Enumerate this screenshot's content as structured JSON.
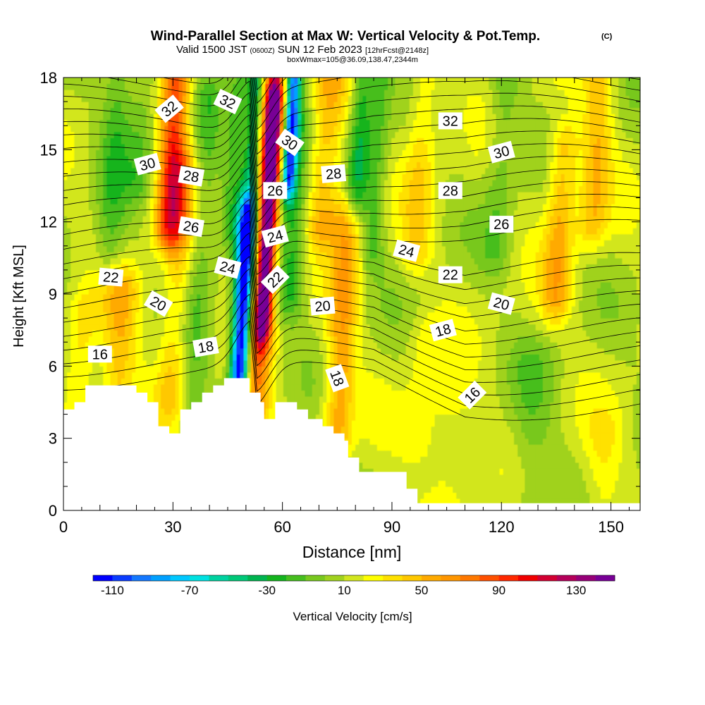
{
  "title": "Wind-Parallel Section at Max W: Vertical Velocity & Pot.Temp.",
  "title_units": "(C)",
  "subtitle": {
    "valid": "Valid 1500 JST",
    "utc": "(0600Z)",
    "date": "SUN 12 Feb 2023",
    "fcst": "[12hrFcst@2148z]"
  },
  "box_note": "boxWmax=105@36.09,138.47,2344m",
  "chart_data": {
    "type": "heatmap",
    "xlabel": "Distance [nm]",
    "ylabel": "Height [Kft MSL]",
    "xlim": [
      0,
      158
    ],
    "ylim": [
      0,
      18
    ],
    "x_ticks": [
      0,
      30,
      60,
      90,
      120,
      150
    ],
    "y_ticks": [
      0,
      3,
      6,
      9,
      12,
      15,
      18
    ],
    "fill_variable": "Vertical Velocity [cm/s]",
    "colorbar": {
      "label": "Vertical Velocity [cm/s]",
      "min": -120,
      "max": 150,
      "step": 10,
      "tick_labels": [
        "-110",
        "-70",
        "-30",
        "10",
        "50",
        "90",
        "130"
      ],
      "colors": [
        "#0000ff",
        "#0a3cff",
        "#1478ff",
        "#00a0ff",
        "#00c8ff",
        "#00e1e1",
        "#00d2a0",
        "#00c878",
        "#00b450",
        "#14b41e",
        "#46be1e",
        "#78c81e",
        "#a0d21e",
        "#d2e61e",
        "#ffff00",
        "#ffe100",
        "#ffc800",
        "#ffaa00",
        "#ff9600",
        "#ff7800",
        "#ff5000",
        "#ff2800",
        "#f00000",
        "#d20032",
        "#b4005a",
        "#960078",
        "#780096"
      ]
    },
    "w_features": [
      {
        "x": 28,
        "ztop": 18,
        "zbot": 12,
        "w": 80,
        "width": 4
      },
      {
        "x": 31,
        "ztop": 14,
        "zbot": 5,
        "w": 30,
        "width": 4
      },
      {
        "x": 16,
        "ztop": 9,
        "zbot": 5.5,
        "w": 35,
        "width": 5
      },
      {
        "x": 6,
        "ztop": 8,
        "zbot": 4.5,
        "w": 25,
        "width": 4
      },
      {
        "x": 12,
        "ztop": 18,
        "zbot": 11,
        "w": -25,
        "width": 4
      },
      {
        "x": 19,
        "ztop": 18,
        "zbot": 14,
        "w": -20,
        "width": 4
      },
      {
        "x": 37,
        "ztop": 17,
        "zbot": 4.5,
        "w": -20,
        "width": 4
      },
      {
        "x": 45,
        "ztop": 18,
        "zbot": 12,
        "w": -25,
        "width": 3
      },
      {
        "x": 50,
        "ztop": 18,
        "zbot": 6,
        "w": -70,
        "width": 2.5
      },
      {
        "x": 49,
        "ztop": 12,
        "zbot": 5,
        "w": -90,
        "width": 2.5
      },
      {
        "x": 55,
        "ztop": 17,
        "zbot": 8,
        "w": 105,
        "width": 2.5
      },
      {
        "x": 54,
        "ztop": 18,
        "zbot": 4,
        "w": 55,
        "width": 4
      },
      {
        "x": 60,
        "ztop": 18,
        "zbot": 14,
        "w": -110,
        "width": 2
      },
      {
        "x": 62,
        "ztop": 16,
        "zbot": 9,
        "w": -35,
        "width": 4
      },
      {
        "x": 70,
        "ztop": 18,
        "zbot": 12,
        "w": 40,
        "width": 5
      },
      {
        "x": 77,
        "ztop": 12,
        "zbot": 3,
        "w": 45,
        "width": 4
      },
      {
        "x": 79,
        "ztop": 18,
        "zbot": 13,
        "w": -40,
        "width": 3
      },
      {
        "x": 84,
        "ztop": 18,
        "zbot": 11,
        "w": -25,
        "width": 3
      },
      {
        "x": 96,
        "ztop": 18,
        "zbot": 11,
        "w": 25,
        "width": 4
      },
      {
        "x": 118,
        "ztop": 18,
        "zbot": 11,
        "w": -20,
        "width": 4
      },
      {
        "x": 135,
        "ztop": 15,
        "zbot": 9,
        "w": 40,
        "width": 4
      },
      {
        "x": 144,
        "ztop": 18,
        "zbot": 12,
        "w": 35,
        "width": 4
      },
      {
        "x": 130,
        "ztop": 6,
        "zbot": 0,
        "w": -15,
        "width": 6
      },
      {
        "x": 108,
        "ztop": 4,
        "zbot": 0,
        "w": 15,
        "width": 6
      },
      {
        "x": 150,
        "ztop": 3,
        "zbot": 0,
        "w": 15,
        "width": 5
      },
      {
        "x": 100,
        "ztop": 7,
        "zbot": 3,
        "w": 15,
        "width": 5
      }
    ],
    "terrain": [
      [
        0,
        4.2
      ],
      [
        3,
        4.2
      ],
      [
        3,
        4.5
      ],
      [
        6,
        4.5
      ],
      [
        6,
        5.2
      ],
      [
        20,
        5.2
      ],
      [
        20,
        4.9
      ],
      [
        23,
        4.9
      ],
      [
        23,
        4.5
      ],
      [
        26,
        4.5
      ],
      [
        26,
        3.5
      ],
      [
        29,
        3.5
      ],
      [
        29,
        3.2
      ],
      [
        32,
        3.2
      ],
      [
        32,
        4.2
      ],
      [
        35,
        4.2
      ],
      [
        35,
        4.5
      ],
      [
        38,
        4.5
      ],
      [
        38,
        4.9
      ],
      [
        41,
        4.9
      ],
      [
        41,
        5.2
      ],
      [
        44,
        5.2
      ],
      [
        44,
        5.5
      ],
      [
        51,
        5.5
      ],
      [
        51,
        4.9
      ],
      [
        54,
        4.9
      ],
      [
        54,
        4.5
      ],
      [
        55,
        4.5
      ],
      [
        55,
        3.8
      ],
      [
        58,
        3.8
      ],
      [
        58,
        4.5
      ],
      [
        64,
        4.5
      ],
      [
        64,
        4.2
      ],
      [
        67,
        4.2
      ],
      [
        67,
        3.8
      ],
      [
        71,
        3.8
      ],
      [
        71,
        3.5
      ],
      [
        74,
        3.5
      ],
      [
        74,
        3.2
      ],
      [
        77,
        3.2
      ],
      [
        77,
        2.9
      ],
      [
        78,
        2.9
      ],
      [
        78,
        2.2
      ],
      [
        81,
        2.2
      ],
      [
        81,
        1.6
      ],
      [
        94,
        1.6
      ],
      [
        94,
        0.9
      ],
      [
        97,
        0.9
      ],
      [
        97,
        0.3
      ],
      [
        158,
        0.3
      ]
    ],
    "theta_contours": [
      {
        "theta": 16,
        "label": "16"
      },
      {
        "theta": 18,
        "label": "18"
      },
      {
        "theta": 20,
        "label": "20"
      },
      {
        "theta": 22,
        "label": "22"
      },
      {
        "theta": 24,
        "label": "24"
      },
      {
        "theta": 26,
        "label": "26"
      },
      {
        "theta": 28,
        "label": "28"
      },
      {
        "theta": 30,
        "label": "30"
      },
      {
        "theta": 32,
        "label": "32"
      }
    ],
    "theta_labels": [
      {
        "text": "16",
        "x": 10,
        "z": 6.5,
        "angle": 0
      },
      {
        "text": "16",
        "x": 112,
        "z": 4.8,
        "angle": -45
      },
      {
        "text": "18",
        "x": 39,
        "z": 6.8,
        "angle": -10
      },
      {
        "text": "18",
        "x": 75,
        "z": 5.5,
        "angle": 70
      },
      {
        "text": "18",
        "x": 104,
        "z": 7.5,
        "angle": -15
      },
      {
        "text": "20",
        "x": 26,
        "z": 8.6,
        "angle": 30
      },
      {
        "text": "20",
        "x": 71,
        "z": 8.5,
        "angle": -5
      },
      {
        "text": "20",
        "x": 120,
        "z": 8.6,
        "angle": 15
      },
      {
        "text": "22",
        "x": 13,
        "z": 9.7,
        "angle": 5
      },
      {
        "text": "22",
        "x": 58,
        "z": 9.6,
        "angle": -45
      },
      {
        "text": "22",
        "x": 106,
        "z": 9.8,
        "angle": 0
      },
      {
        "text": "24",
        "x": 45,
        "z": 10.1,
        "angle": 15
      },
      {
        "text": "24",
        "x": 58,
        "z": 11.4,
        "angle": -15
      },
      {
        "text": "24",
        "x": 94,
        "z": 10.8,
        "angle": 15
      },
      {
        "text": "26",
        "x": 35,
        "z": 11.8,
        "angle": 10
      },
      {
        "text": "26",
        "x": 58,
        "z": 13.3,
        "angle": 0
      },
      {
        "text": "26",
        "x": 120,
        "z": 11.9,
        "angle": 0
      },
      {
        "text": "28",
        "x": 35,
        "z": 13.9,
        "angle": 10
      },
      {
        "text": "28",
        "x": 74,
        "z": 14.0,
        "angle": -5
      },
      {
        "text": "28",
        "x": 106,
        "z": 13.3,
        "angle": 0
      },
      {
        "text": "30",
        "x": 23,
        "z": 14.4,
        "angle": -15
      },
      {
        "text": "30",
        "x": 62,
        "z": 15.3,
        "angle": 35
      },
      {
        "text": "30",
        "x": 120,
        "z": 14.9,
        "angle": -15
      },
      {
        "text": "32",
        "x": 29,
        "z": 16.7,
        "angle": -40
      },
      {
        "text": "32",
        "x": 45,
        "z": 17.0,
        "angle": 25
      },
      {
        "text": "32",
        "x": 106,
        "z": 16.2,
        "angle": 0
      }
    ]
  }
}
